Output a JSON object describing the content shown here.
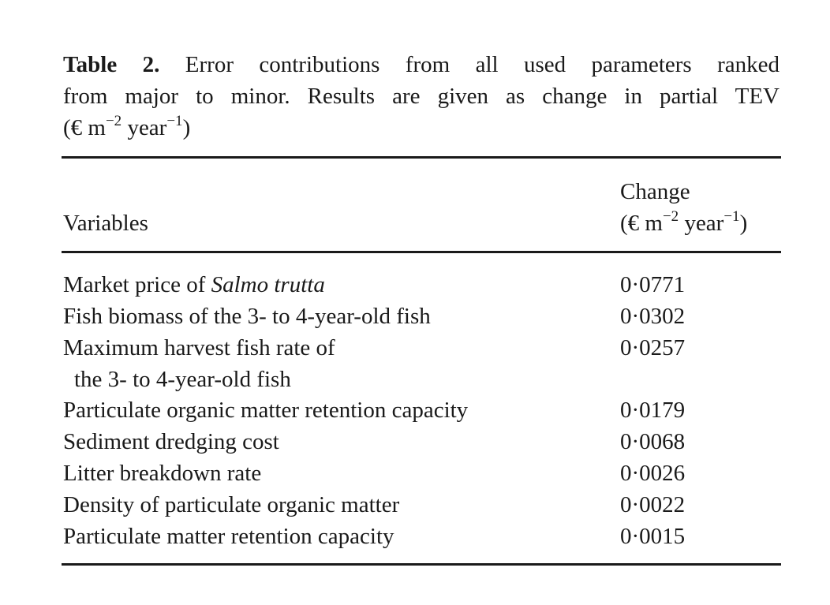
{
  "caption": {
    "label": "Table 2.",
    "line1_text": "Error contributions from all used parameters ranked",
    "line2_text": "from major to minor. Results are given as change in partial TEV",
    "line3_prefix": "(€ m",
    "line3_exp1": "−2",
    "line3_mid": " year",
    "line3_exp2": "−1",
    "line3_suffix": ")"
  },
  "table": {
    "headers": {
      "variables": "Variables",
      "change_line1": "Change",
      "change_unit_prefix": "(€ m",
      "change_unit_exp1": "−2",
      "change_unit_mid": " year",
      "change_unit_exp2": "−1",
      "change_unit_suffix": ")"
    },
    "rows": [
      {
        "variable_prefix": "Market price of ",
        "variable_italic": "Salmo trutta",
        "change": "0·0771"
      },
      {
        "variable": "Fish biomass of the 3- to 4-year-old fish",
        "change": "0·0302"
      },
      {
        "variable": "Maximum harvest fish rate of",
        "variable_cont": "the 3- to 4-year-old fish",
        "change": "0·0257"
      },
      {
        "variable": "Particulate organic matter retention capacity",
        "change": "0·0179"
      },
      {
        "variable": "Sediment dredging cost",
        "change": "0·0068"
      },
      {
        "variable": "Litter breakdown rate",
        "change": "0·0026"
      },
      {
        "variable": "Density of particulate organic matter",
        "change": "0·0022"
      },
      {
        "variable": "Particulate matter retention capacity",
        "change": "0·0015"
      }
    ]
  }
}
